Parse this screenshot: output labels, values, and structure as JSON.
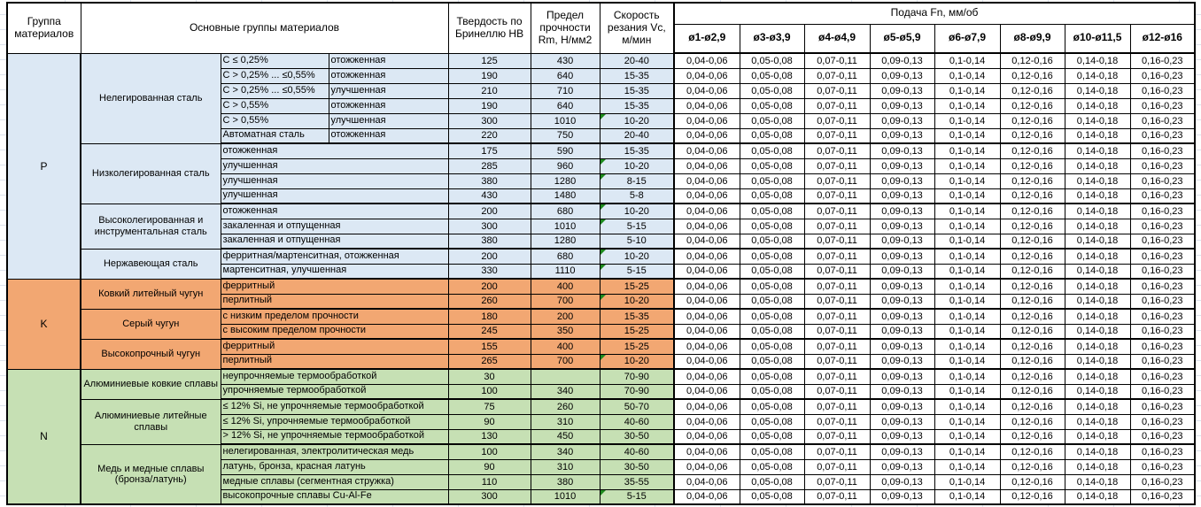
{
  "table": {
    "header": {
      "col_group": "Группа материалов",
      "col_material_groups": "Основные группы материалов",
      "col_hardness": "Твердость по Бринеллю HB",
      "col_strength": "Предел прочности Rm, Н/мм2",
      "col_speed": "Скорость резания Vc, м/мин",
      "feed_group": "Подача Fn, мм/об",
      "feed_columns": [
        "ø1-ø2,9",
        "ø3-ø3,9",
        "ø4-ø4,9",
        "ø5-ø5,9",
        "ø6-ø7,9",
        "ø8-ø9,9",
        "ø10-ø11,5",
        "ø12-ø16"
      ]
    },
    "feed_values_all_rows": [
      "0,04-0,06",
      "0,05-0,08",
      "0,07-0,11",
      "0,09-0,13",
      "0,1-0,14",
      "0,12-0,16",
      "0,14-0,18",
      "0,16-0,23"
    ],
    "colors": {
      "section_p": "#DCE8F4",
      "section_k": "#F2A772",
      "section_n": "#C6E0B4",
      "marker_green": "#1E8A1E",
      "border": "#000000"
    },
    "sections": [
      {
        "letter": "P",
        "color": "#DCE8F4",
        "groups": [
          {
            "name": "Нелегированная сталь",
            "rows": [
              {
                "sub1": "C ≤ 0,25%",
                "sub2": "отожженная",
                "hb": "125",
                "rm": "430",
                "vc": "20-40",
                "vc_marker": false
              },
              {
                "sub1": "C > 0,25% ... ≤0,55%",
                "sub2": "отожженная",
                "hb": "190",
                "rm": "640",
                "vc": "15-35",
                "vc_marker": false
              },
              {
                "sub1": "C > 0,25% ... ≤0,55%",
                "sub2": "улучшенная",
                "hb": "210",
                "rm": "710",
                "vc": "15-35",
                "vc_marker": false
              },
              {
                "sub1": "C > 0,55%",
                "sub2": "отожженная",
                "hb": "190",
                "rm": "640",
                "vc": "15-35",
                "vc_marker": false
              },
              {
                "sub1": "C > 0,55%",
                "sub2": "улучшенная",
                "hb": "300",
                "rm": "1010",
                "vc": "10-20",
                "vc_marker": true
              },
              {
                "sub1": "Автоматная сталь",
                "sub2": "отожженная",
                "hb": "220",
                "rm": "750",
                "vc": "20-40",
                "vc_marker": false
              }
            ]
          },
          {
            "name": "Низколегированная сталь",
            "rows": [
              {
                "sub1": "отожженная",
                "sub2": null,
                "hb": "175",
                "rm": "590",
                "vc": "15-35",
                "vc_marker": false
              },
              {
                "sub1": "улучшенная",
                "sub2": null,
                "hb": "285",
                "rm": "960",
                "vc": "10-20",
                "vc_marker": true
              },
              {
                "sub1": "улучшенная",
                "sub2": null,
                "hb": "380",
                "rm": "1280",
                "vc": "8-15",
                "vc_marker": true
              },
              {
                "sub1": "улучшенная",
                "sub2": null,
                "hb": "430",
                "rm": "1480",
                "vc": "5-8",
                "vc_marker": false
              }
            ]
          },
          {
            "name": "Высоколегированная и инструментальная сталь",
            "rows": [
              {
                "sub1": "отожженная",
                "sub2": null,
                "hb": "200",
                "rm": "680",
                "vc": "10-20",
                "vc_marker": true
              },
              {
                "sub1": "закаленная и отпущенная",
                "sub2": null,
                "hb": "300",
                "rm": "1010",
                "vc": "5-15",
                "vc_marker": true
              },
              {
                "sub1": "закаленная и отпущенная",
                "sub2": null,
                "hb": "380",
                "rm": "1280",
                "vc": "5-10",
                "vc_marker": false
              }
            ]
          },
          {
            "name": "Нержавеющая сталь",
            "rows": [
              {
                "sub1": "ферритная/мартенситная, отожженная",
                "sub2": null,
                "hb": "200",
                "rm": "680",
                "vc": "10-20",
                "vc_marker": true
              },
              {
                "sub1": "мартенситная, улучшенная",
                "sub2": null,
                "hb": "330",
                "rm": "1110",
                "vc": "5-15",
                "vc_marker": true
              }
            ]
          }
        ]
      },
      {
        "letter": "K",
        "color": "#F2A772",
        "groups": [
          {
            "name": "Ковкий литейный чугун",
            "rows": [
              {
                "sub1": "ферритный",
                "sub2": null,
                "hb": "200",
                "rm": "400",
                "vc": "15-25",
                "vc_marker": false
              },
              {
                "sub1": "перлитный",
                "sub2": null,
                "hb": "260",
                "rm": "700",
                "vc": "10-20",
                "vc_marker": true
              }
            ]
          },
          {
            "name": "Серый чугун",
            "rows": [
              {
                "sub1": "с низким пределом прочности",
                "sub2": null,
                "hb": "180",
                "rm": "200",
                "vc": "15-35",
                "vc_marker": false
              },
              {
                "sub1": "с высоким пределом прочности",
                "sub2": null,
                "hb": "245",
                "rm": "350",
                "vc": "15-25",
                "vc_marker": false
              }
            ]
          },
          {
            "name": "Высокопрочный чугун",
            "rows": [
              {
                "sub1": "ферритный",
                "sub2": null,
                "hb": "155",
                "rm": "400",
                "vc": "15-25",
                "vc_marker": false
              },
              {
                "sub1": "перлитный",
                "sub2": null,
                "hb": "265",
                "rm": "700",
                "vc": "10-20",
                "vc_marker": true
              }
            ]
          }
        ]
      },
      {
        "letter": "N",
        "color": "#C6E0B4",
        "groups": [
          {
            "name": "Алюминиевые ковкие сплавы",
            "rows": [
              {
                "sub1": "неупрочняемые термообработкой",
                "sub2": null,
                "hb": "30",
                "rm": "",
                "vc": "70-90",
                "vc_marker": false
              },
              {
                "sub1": "упрочняемые термообработкой",
                "sub2": null,
                "hb": "100",
                "rm": "340",
                "vc": "70-90",
                "vc_marker": false
              }
            ]
          },
          {
            "name": "Алюминиевые литейные сплавы",
            "rows": [
              {
                "sub1": "≤ 12% Si, не упрочняемые термообработкой",
                "sub2": null,
                "hb": "75",
                "rm": "260",
                "vc": "50-70",
                "vc_marker": false
              },
              {
                "sub1": "≤ 12% Si, упрочняемые термообработкой",
                "sub2": null,
                "hb": "90",
                "rm": "310",
                "vc": "40-60",
                "vc_marker": false
              },
              {
                "sub1": "> 12% Si, не упрочняемые термообработкой",
                "sub2": null,
                "hb": "130",
                "rm": "450",
                "vc": "30-50",
                "vc_marker": false
              }
            ]
          },
          {
            "name": "Медь и медные сплавы (бронза/латунь)",
            "rows": [
              {
                "sub1": "нелегированная, электролитическая медь",
                "sub2": null,
                "hb": "100",
                "rm": "340",
                "vc": "40-60",
                "vc_marker": false
              },
              {
                "sub1": "латунь, бронза, красная латунь",
                "sub2": null,
                "hb": "90",
                "rm": "310",
                "vc": "30-50",
                "vc_marker": false
              },
              {
                "sub1": "медные сплавы (сегментная стружка)",
                "sub2": null,
                "hb": "110",
                "rm": "380",
                "vc": "35-55",
                "vc_marker": false
              },
              {
                "sub1": "высокопрочные сплавы Cu-Al-Fe",
                "sub2": null,
                "hb": "300",
                "rm": "1010",
                "vc": "5-15",
                "vc_marker": true
              }
            ]
          }
        ]
      }
    ]
  }
}
